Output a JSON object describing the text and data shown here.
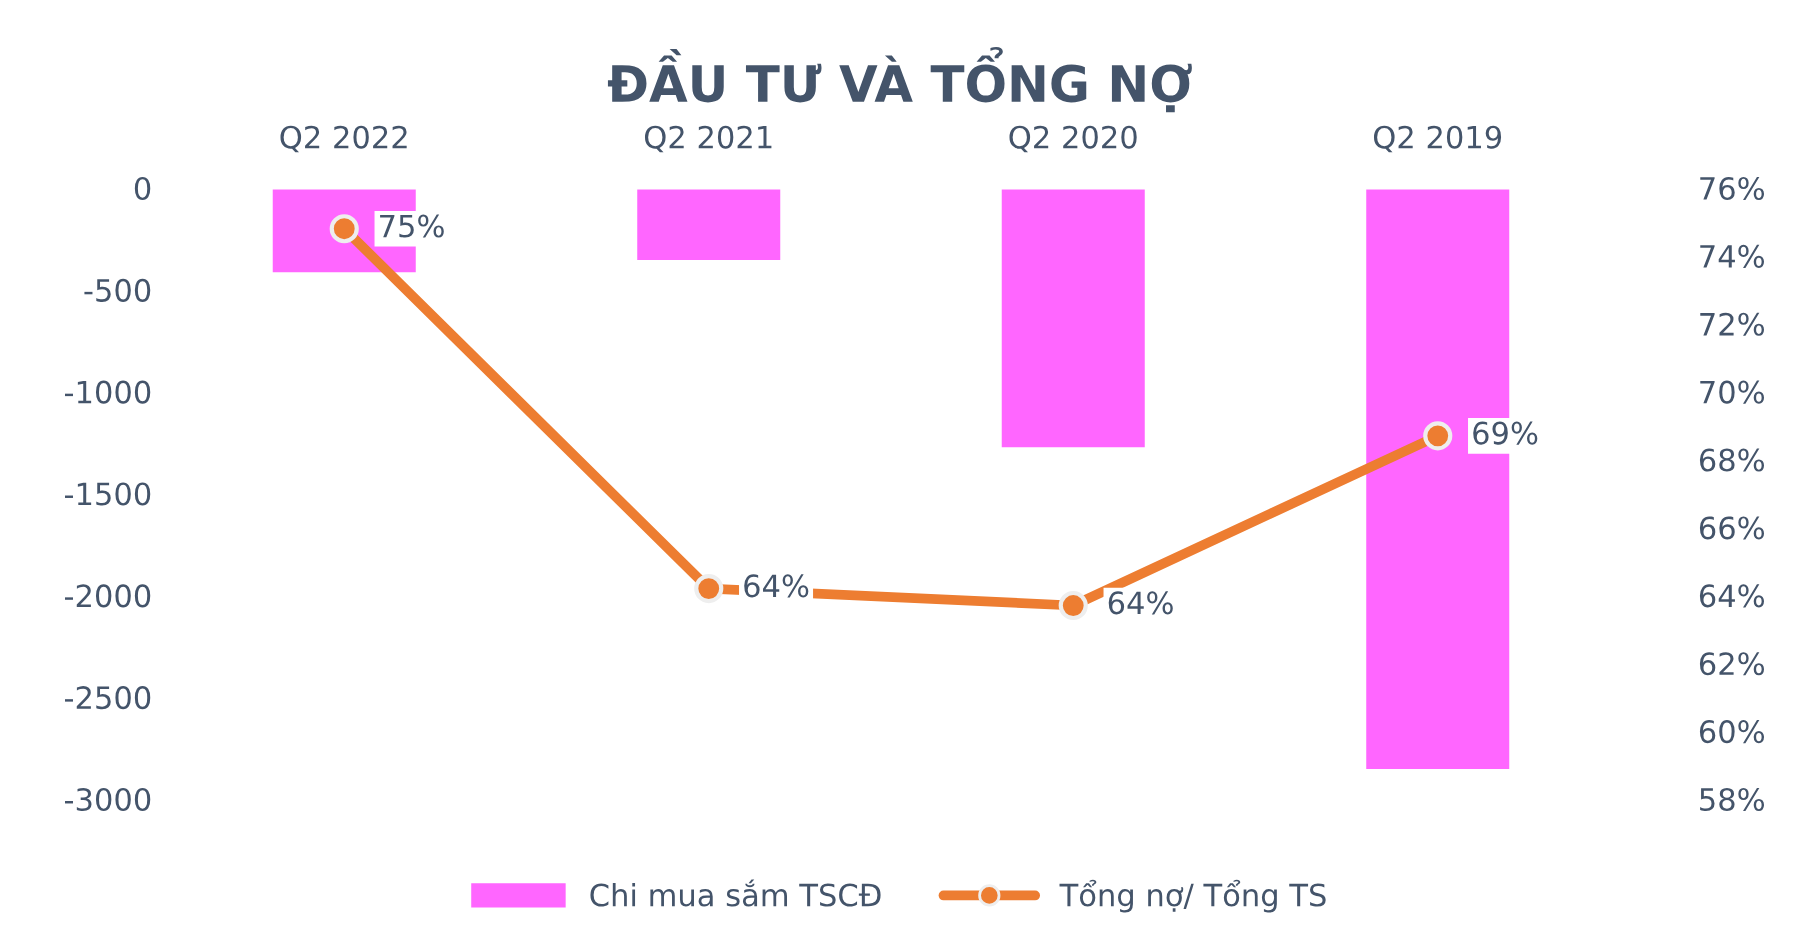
{
  "chart_data": {
    "type": "bar",
    "title": "ĐẦU TƯ VÀ TỔNG NỢ",
    "categories": [
      "Q2 2022",
      "Q2 2021",
      "Q2 2020",
      "Q2 2019"
    ],
    "series": [
      {
        "name": "Chi mua sắm TSCĐ",
        "color": "#ff66ff",
        "values": [
          -420,
          -360,
          -1280,
          -2860
        ]
      },
      {
        "name": "Tổng nợ/ Tổng TS",
        "type": "line",
        "axis": "y2",
        "color": "#ed7d31",
        "marker": "circle",
        "values": [
          74.8,
          64.2,
          63.7,
          68.7
        ],
        "value_labels": [
          "75%",
          "64%",
          "64%",
          "69%"
        ]
      }
    ],
    "ylim": [
      -3000,
      0
    ],
    "yticks": [
      0,
      -500,
      -1000,
      -1500,
      -2000,
      -2500,
      -3000
    ],
    "y2lim": [
      58,
      76
    ],
    "y2ticks": [
      {
        "value": 76,
        "label": "76%"
      },
      {
        "value": 74,
        "label": "74%"
      },
      {
        "value": 72,
        "label": "72%"
      },
      {
        "value": 70,
        "label": "70%"
      },
      {
        "value": 68,
        "label": "68%"
      },
      {
        "value": 66,
        "label": "66%"
      },
      {
        "value": 64,
        "label": "64%"
      },
      {
        "value": 62,
        "label": "62%"
      },
      {
        "value": 60,
        "label": "60%"
      },
      {
        "value": 58,
        "label": "58%"
      }
    ],
    "grid": false,
    "legend": "bottom"
  }
}
